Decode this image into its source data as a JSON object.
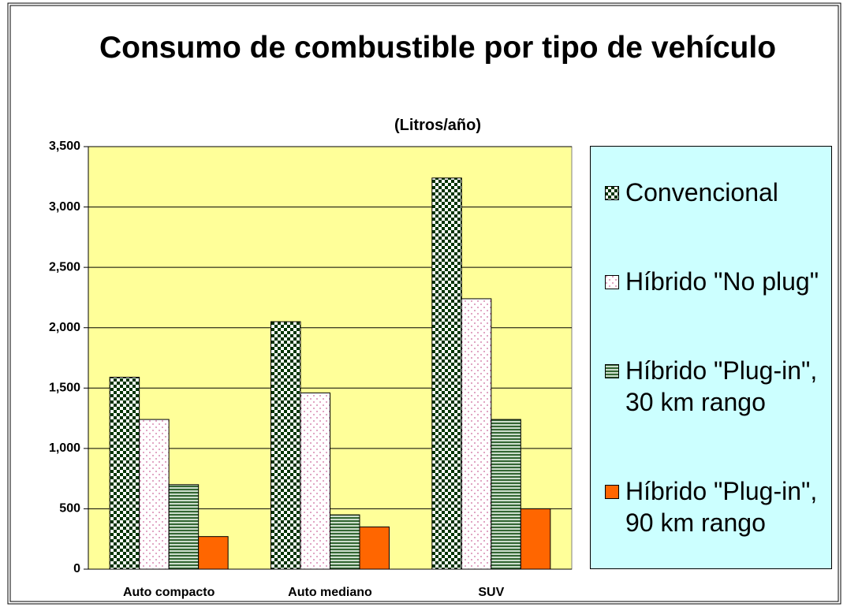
{
  "chart_data": {
    "type": "bar",
    "title": "Consumo de combustible por tipo de vehículo",
    "subtitle": "(Litros/año)",
    "categories": [
      "Auto compacto",
      "Auto mediano",
      "SUV"
    ],
    "series": [
      {
        "name": "Convencional",
        "color": "#003300",
        "pattern": "checker",
        "values": [
          1590,
          2050,
          3240
        ]
      },
      {
        "name": "Híbrido \"No plug\"",
        "color": "#cc6699",
        "pattern": "dots",
        "values": [
          1240,
          1460,
          2240
        ]
      },
      {
        "name": "Híbrido \"Plug-in\", 30 km rango",
        "color": "#336633",
        "pattern": "stripes",
        "values": [
          700,
          450,
          1240
        ]
      },
      {
        "name": "Híbrido \"Plug-in\", 90 km rango",
        "color": "#ff6600",
        "pattern": "solid",
        "values": [
          270,
          350,
          500
        ]
      }
    ],
    "ylim": [
      0,
      3500
    ],
    "yticks": [
      0,
      500,
      {
        "value": 1000,
        "label": "1,000"
      },
      {
        "value": 1500,
        "label": "1,500"
      },
      {
        "value": 2000,
        "label": "2,000"
      },
      {
        "value": 2500,
        "label": "2,500"
      },
      {
        "value": 3000,
        "label": "3,000"
      },
      {
        "value": 3500,
        "label": "3,500"
      }
    ],
    "grid": true,
    "plot_background": "#ffff99",
    "legend_background": "#ccffff",
    "legend": "right"
  }
}
